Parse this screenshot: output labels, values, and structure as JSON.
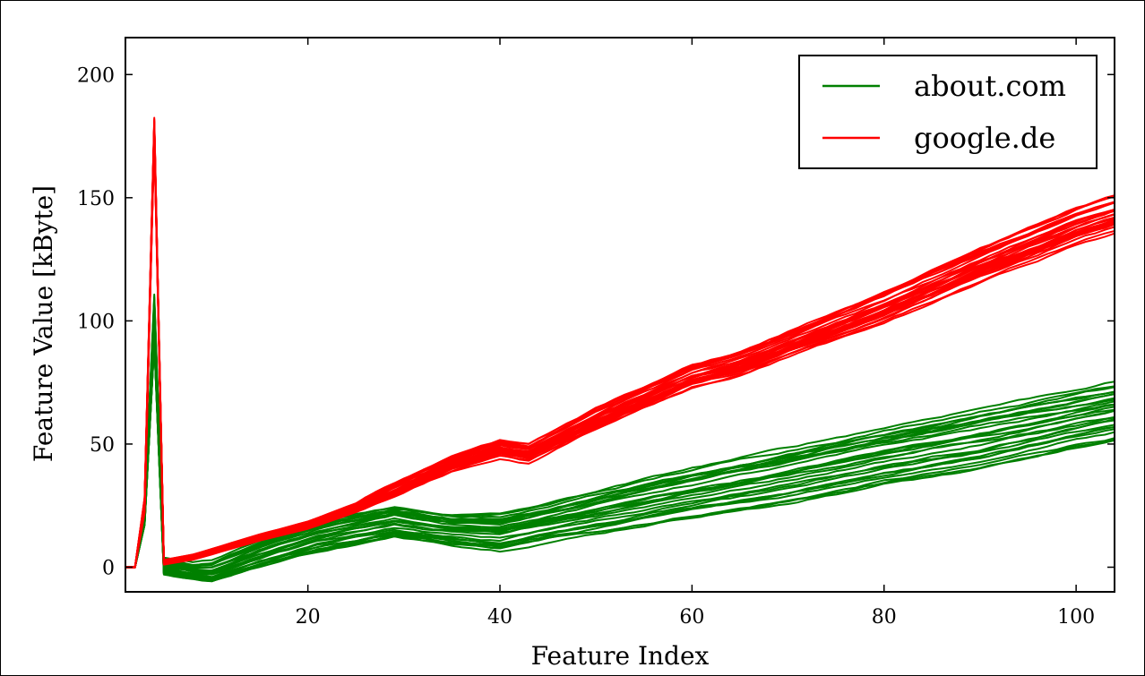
{
  "chart_data": {
    "type": "line",
    "title": "",
    "xlabel": "Feature Index",
    "ylabel": "Feature Value [kByte]",
    "xlim": [
      1,
      104
    ],
    "ylim": [
      -10,
      215
    ],
    "x_ticks": [
      20,
      40,
      60,
      80,
      100
    ],
    "y_ticks": [
      0,
      50,
      100,
      150,
      200
    ],
    "grid": false,
    "legend_position": "top-right",
    "series": [
      {
        "name": "about.com",
        "color": "#008000",
        "instances": 28,
        "x": [
          1,
          2,
          3,
          4,
          5,
          8,
          10,
          15,
          21,
          29,
          35,
          40,
          45,
          50,
          60,
          70,
          80,
          90,
          100,
          104
        ],
        "y": [
          0,
          0,
          20,
          100,
          0,
          -2,
          -2,
          5,
          12,
          18,
          15,
          14,
          18,
          22,
          30,
          37,
          45,
          52,
          60,
          63
        ],
        "spread": [
          0,
          0,
          3,
          10,
          3,
          3,
          4,
          5,
          6,
          6,
          6,
          7,
          7,
          8,
          9,
          10,
          10,
          11,
          10,
          10
        ]
      },
      {
        "name": "google.de",
        "color": "#ff0000",
        "instances": 30,
        "x": [
          1,
          2,
          3,
          4,
          5,
          8,
          15,
          20,
          25,
          30,
          35,
          40,
          43,
          50,
          60,
          65,
          70,
          80,
          90,
          100,
          104
        ],
        "y": [
          0,
          0,
          25,
          178,
          2,
          4,
          12,
          17,
          24,
          33,
          42,
          48,
          46,
          60,
          77,
          82,
          90,
          105,
          122,
          138,
          143
        ],
        "spread": [
          0,
          0,
          3,
          4,
          1,
          1,
          1,
          1,
          1,
          2,
          2,
          2,
          2,
          2,
          2,
          2,
          2,
          3,
          3,
          3,
          3
        ]
      }
    ]
  }
}
